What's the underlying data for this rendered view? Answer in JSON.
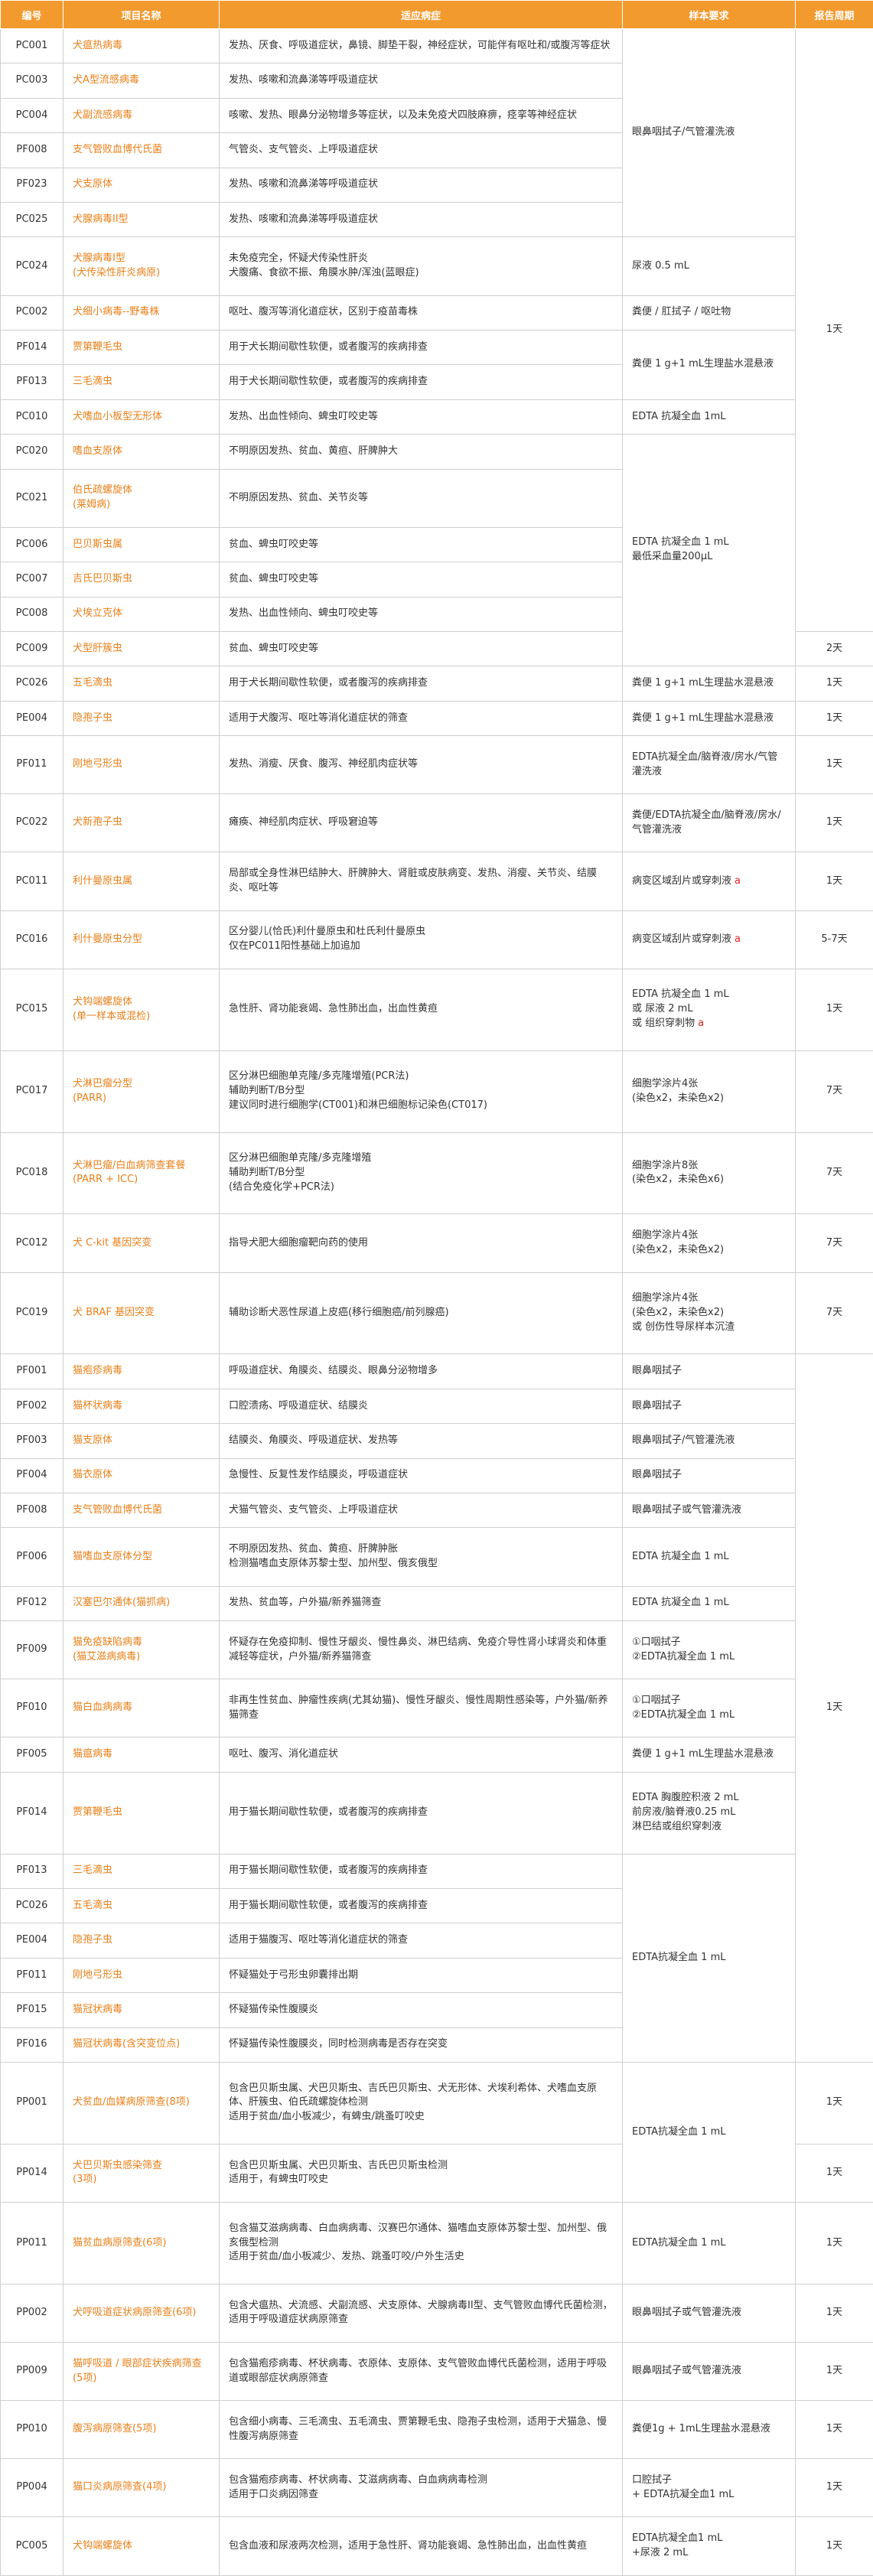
{
  "header": [
    "编号",
    "项目名称",
    "适应病症",
    "样本要求",
    "报告周期"
  ],
  "rows": [
    {
      "code": "PC001",
      "name": "犬瘟热病毒",
      "symptom": "发热、厌食、呼吸道症状，鼻镜、脚垫干裂，神经症状，可能伴有呕吐和/或腹泻等症状"
    },
    {
      "code": "PC003",
      "name": "犬A型流感病毒",
      "symptom": "发热、咳嗽和流鼻涕等呼吸道症状"
    },
    {
      "code": "PC004",
      "name": "犬副流感病毒",
      "symptom": "咳嗽、发热、眼鼻分泌物增多等症状，以及未免疫犬四肢麻痹，痉挛等神经症状"
    },
    {
      "code": "PF008",
      "name": "支气管败血博代氏菌",
      "symptom": "气管炎、支气管炎、上呼吸道症状"
    },
    {
      "code": "PF023",
      "name": "犬支原体",
      "symptom": "发热、咳嗽和流鼻涕等呼吸道症状"
    },
    {
      "code": "PC025",
      "name": "犬腺病毒II型",
      "symptom": "发热、咳嗽和流鼻涕等呼吸道症状"
    },
    {
      "code": "PC024",
      "name": "犬腺病毒I型\n(犬传染性肝炎病原)",
      "symptom": "未免疫完全，怀疑犬传染性肝炎\n犬腹痛、食欲不振、角膜水肿/浑浊(蓝眼症)"
    },
    {
      "code": "PC002",
      "name": "犬细小病毒--野毒株",
      "symptom": "呕吐、腹泻等消化道症状，区别于疫苗毒株"
    },
    {
      "code": "PF014",
      "name": "贾第鞭毛虫",
      "symptom": "用于犬长期间歇性软便，或者腹泻的疾病排查"
    },
    {
      "code": "PF013",
      "name": "三毛滴虫",
      "symptom": "用于犬长期间歇性软便，或者腹泻的疾病排查"
    },
    {
      "code": "PC010",
      "name": "犬嗜血小板型无形体",
      "symptom": "发热、出血性倾向、蜱虫叮咬史等"
    },
    {
      "code": "PC020",
      "name": "嗜血支原体",
      "symptom": "不明原因发热、贫血、黄疸、肝脾肿大"
    },
    {
      "code": "PC021",
      "name": "伯氏疏螺旋体\n(莱姆病)",
      "symptom": "不明原因发热、贫血、关节炎等"
    },
    {
      "code": "PC006",
      "name": "巴贝斯虫属",
      "symptom": "贫血、蜱虫叮咬史等"
    },
    {
      "code": "PC007",
      "name": "吉氏巴贝斯虫",
      "symptom": "贫血、蜱虫叮咬史等"
    },
    {
      "code": "PC008",
      "name": "犬埃立克体",
      "symptom": "发热、出血性倾向、蜱虫叮咬史等"
    },
    {
      "code": "PC009",
      "name": "犬型肝簇虫",
      "symptom": "贫血、蜱虫叮咬史等"
    },
    {
      "code": "PC026",
      "name": "五毛滴虫",
      "symptom": "用于犬长期间歇性软便，或者腹泻的疾病排查"
    },
    {
      "code": "PE004",
      "name": "隐孢子虫",
      "symptom": "适用于犬腹泻、呕吐等消化道症状的筛查"
    },
    {
      "code": "PF011",
      "name": "刚地弓形虫",
      "symptom": "发热、消瘦、厌食、腹泻、神经肌肉症状等"
    },
    {
      "code": "PC022",
      "name": "犬新孢子虫",
      "symptom": "瘫痪、神经肌肉症状、呼吸窘迫等"
    },
    {
      "code": "PC011",
      "name": "利什曼原虫属",
      "symptom": "局部或全身性淋巴结肿大、肝脾肿大、肾脏或皮肤病变、发热、消瘦、关节炎、结膜炎、呕吐等"
    },
    {
      "code": "PC016",
      "name": "利什曼原虫分型",
      "symptom": "区分婴儿(恰氏)利什曼原虫和杜氏利什曼原虫\n仅在PC011阳性基础上加追加"
    },
    {
      "code": "PC015",
      "name": "犬钩端螺旋体\n(单一样本或混检)",
      "symptom": "急性肝、肾功能衰竭、急性肺出血，出血性黄疸"
    },
    {
      "code": "PC017",
      "name": "犬淋巴瘤分型\n(PARR)",
      "symptom": "区分淋巴细胞单克隆/多克隆增殖(PCR法)\n辅助判断T/B分型\n建议同时进行细胞学(CT001)和淋巴细胞标记染色(CT017)"
    },
    {
      "code": "PC018",
      "name": "犬淋巴瘤/白血病筛查套餐\n(PARR + ICC)",
      "symptom": "区分淋巴细胞单克隆/多克隆增殖\n辅助判断T/B分型\n(结合免疫化学+PCR法)"
    },
    {
      "code": "PC012",
      "name": "犬 C-kit 基因突变",
      "symptom": "指导犬肥大细胞瘤靶向药的使用"
    },
    {
      "code": "PC019",
      "name": "犬 BRAF 基因突变",
      "symptom": "辅助诊断犬恶性尿道上皮癌(移行细胞癌/前列腺癌)"
    },
    {
      "code": "PF001",
      "name": "猫疱疹病毒",
      "symptom": "呼吸道症状、角膜炎、结膜炎、眼鼻分泌物增多"
    },
    {
      "code": "PF002",
      "name": "猫杯状病毒",
      "symptom": "口腔溃疡、呼吸道症状、结膜炎"
    },
    {
      "code": "PF003",
      "name": "猫支原体",
      "symptom": "结膜炎、角膜炎、呼吸道症状、发热等"
    },
    {
      "code": "PF004",
      "name": "猫衣原体",
      "symptom": "急慢性、反复性发作结膜炎，呼吸道症状"
    },
    {
      "code": "PF008",
      "name": "支气管败血博代氏菌",
      "symptom": "犬猫气管炎、支气管炎、上呼吸道症状"
    },
    {
      "code": "PF006",
      "name": "猫嗜血支原体分型",
      "symptom": "不明原因发热、贫血、黄疸、肝脾肿胀\n检测猫嗜血支原体苏黎士型、加州型、俄亥俄型"
    },
    {
      "code": "PF012",
      "name": "汉塞巴尔通体(猫抓病)",
      "symptom": "发热、贫血等，户外猫/新养猫筛查"
    },
    {
      "code": "PF009",
      "name": "猫免疫缺陷病毒\n(猫艾滋病病毒)",
      "symptom": "怀疑存在免疫抑制、慢性牙龈炎、慢性鼻炎、淋巴结病、免疫介导性肾小球肾炎和体重减轻等症状，户外猫/新养猫筛查"
    },
    {
      "code": "PF010",
      "name": "猫白血病病毒",
      "symptom": "非再生性贫血、肿瘤性疾病(尤其幼猫)、慢性牙龈炎、慢性周期性感染等，户外猫/新养猫筛查"
    },
    {
      "code": "PF005",
      "name": "猫瘟病毒",
      "symptom": "呕吐、腹泻、消化道症状"
    },
    {
      "code": "PF014",
      "name": "贾第鞭毛虫",
      "symptom": "用于猫长期间歇性软便，或者腹泻的疾病排查"
    },
    {
      "code": "PF013",
      "name": "三毛滴虫",
      "symptom": "用于猫长期间歇性软便，或者腹泻的疾病排查"
    },
    {
      "code": "PC026",
      "name": "五毛滴虫",
      "symptom": "用于猫长期间歇性软便，或者腹泻的疾病排查"
    },
    {
      "code": "PE004",
      "name": "隐孢子虫",
      "symptom": "适用于猫腹泻、呕吐等消化道症状的筛查"
    },
    {
      "code": "PF011",
      "name": "刚地弓形虫",
      "symptom": "怀疑猫处于弓形虫卵囊排出期"
    },
    {
      "code": "PF015",
      "name": "猫冠状病毒",
      "symptom": "怀疑猫传染性腹膜炎"
    },
    {
      "code": "PF016",
      "name": "猫冠状病毒(含突变位点)",
      "symptom": "怀疑猫传染性腹膜炎，同时检测病毒是否存在突变"
    },
    {
      "code": "PP001",
      "name": "犬贫血/血媒病原筛查(8项)",
      "symptom": "包含巴贝斯虫属、犬巴贝斯虫、吉氏巴贝斯虫、犬无形体、犬埃利希体、犬嗜血支原体、肝簇虫、伯氏疏螺旋体检测\n适用于贫血/血小板减少，有蜱虫/跳蚤叮咬史"
    },
    {
      "code": "PP014",
      "name": "犬巴贝斯虫感染筛查\n(3项)",
      "symptom": "包含巴贝斯虫属、犬巴贝斯虫、吉氏巴贝斯虫检测\n适用于，有蜱虫叮咬史"
    },
    {
      "code": "PP011",
      "name": "猫贫血病原筛查(6项)",
      "symptom": "包含猫艾滋病病毒、白血病病毒、汉赛巴尔通体、猫嗜血支原体苏黎士型、加州型、俄亥俄型检测\n适用于贫血/血小板减少、发热、跳蚤叮咬/户外生活史"
    },
    {
      "code": "PP002",
      "name": "犬呼吸道症状病原筛查(6项)",
      "symptom": "包含犬瘟热、犬流感、犬副流感、犬支原体、犬腺病毒II型、支气管败血博代氏菌检测，适用于呼吸道症状病原筛查"
    },
    {
      "code": "PP009",
      "name": "猫呼吸道 / 眼部症状疾病筛查(5项)",
      "symptom": "包含猫疱疹病毒、杯状病毒、衣原体、支原体、支气管败血博代氏菌检测，适用于呼吸道或眼部症状病原筛查"
    },
    {
      "code": "PP010",
      "name": "腹泻病原筛查(5项)",
      "symptom": "包含细小病毒、三毛滴虫、五毛滴虫、贾第鞭毛虫、隐孢子虫检测，适用于犬猫急、慢性腹泻病原筛查"
    },
    {
      "code": "PP004",
      "name": "猫口炎病原筛查(4项)",
      "symptom": "包含猫疱疹病毒、杯状病毒、艾滋病病毒、白血病病毒检测\n适用于口炎病因筛查"
    },
    {
      "code": "PC005",
      "name": "犬钩端螺旋体",
      "symptom": "包含血液和尿液两次检测，适用于急性肝、肾功能衰竭、急性肺出血，出血性黄疸"
    }
  ],
  "samples": [
    "眼鼻咽拭子/气管灌洗液",
    "尿液  0.5 mL",
    "粪便 / 肛拭子 / 呕吐物",
    "粪便 1 g+1 mL生理盐水混悬液",
    "EDTA 抗凝全血  1mL",
    "EDTA 抗凝全血 1 mL\n最低采血量200μL",
    "粪便 1 g+1 mL生理盐水混悬液",
    "粪便 1 g+1 mL生理盐水混悬液",
    "EDTA抗凝全血/脑脊液/房水/气管灌洗液",
    "粪便/EDTA抗凝全血/脑脊液/房水/气管灌洗液",
    {
      "text": "病变区域刮片或穿刺液",
      "note": "a"
    },
    {
      "text": "病变区域刮片或穿刺液",
      "note": "a"
    },
    {
      "text": "EDTA 抗凝全血 1 mL\n或 尿液 2 mL\n或 组织穿刺物",
      "note": "a"
    },
    "细胞学涂片4张\n(染色x2，未染色x2)",
    "细胞学涂片8张\n(染色x2，未染色x6)",
    "细胞学涂片4张\n(染色x2，未染色x2)",
    "细胞学涂片4张\n(染色x2，未染色x2)\n或 创伤性导尿样本沉渣",
    "眼鼻咽拭子",
    "眼鼻咽拭子",
    "眼鼻咽拭子/气管灌洗液",
    "眼鼻咽拭子",
    "眼鼻咽拭子或气管灌洗液",
    "EDTA 抗凝全血 1 mL",
    "EDTA 抗凝全血 1 mL",
    "①口咽拭子\n②EDTA抗凝全血 1 mL",
    "①口咽拭子\n②EDTA抗凝全血 1 mL",
    "粪便 1 g+1 mL生理盐水混悬液",
    "EDTA 胸腹腔积液 2 mL\n前房液/脑脊液0.25 mL\n淋巴结或组织穿刺液",
    "EDTA抗凝全血 1 mL",
    "EDTA抗凝全血 1 mL",
    "EDTA抗凝全血 1 mL",
    "眼鼻咽拭子或气管灌洗液",
    "眼鼻咽拭子或气管灌洗液",
    "粪便1g + 1mL生理盐水混悬液",
    "口腔拭子\n+ EDTA抗凝全血1 mL",
    "EDTA抗凝全血1 mL\n+尿液 2 mL"
  ],
  "periods": [
    "1天",
    "2天",
    "1天",
    "1天",
    "1天",
    "1天",
    "1天",
    "5-7天",
    "1天",
    "7天",
    "7天",
    "7天",
    "7天",
    "1天",
    "1天",
    "1天",
    "1天",
    "1天",
    "1天",
    "1天",
    "1天",
    "1天"
  ]
}
